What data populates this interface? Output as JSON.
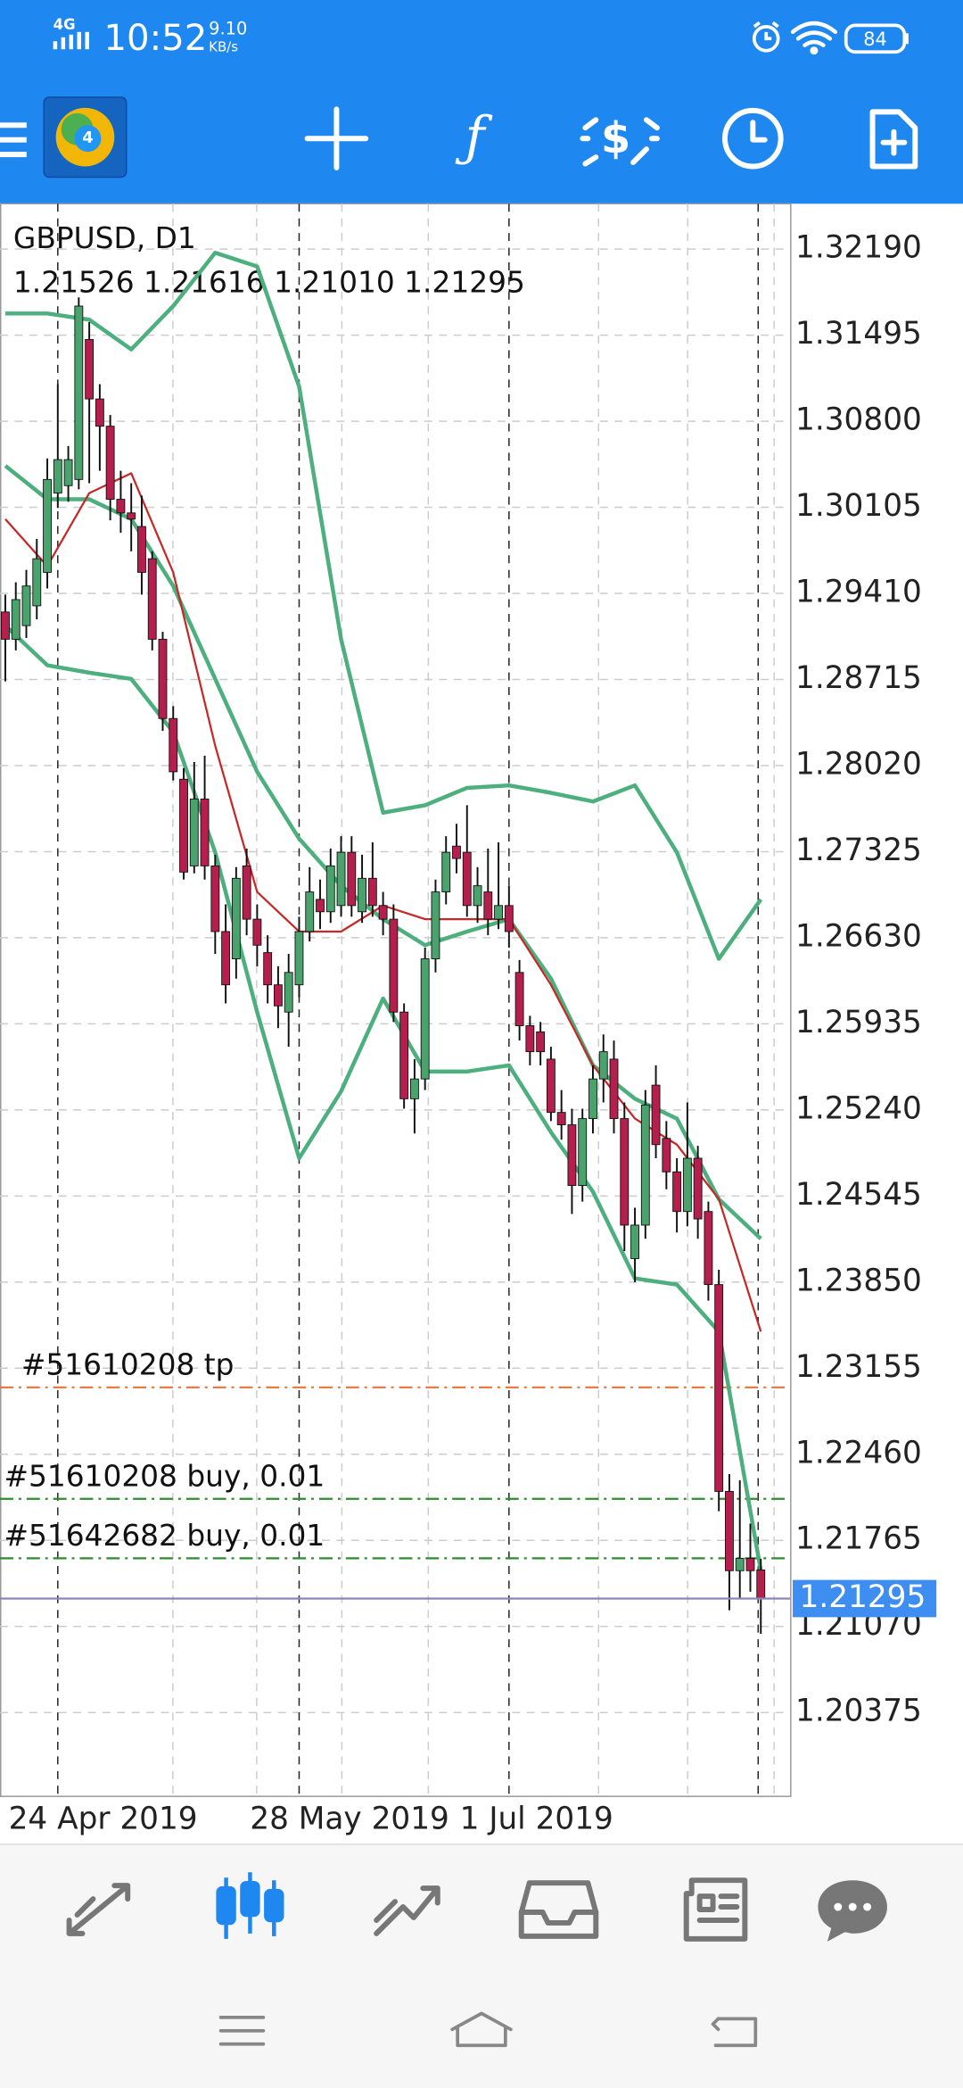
{
  "status_bar": {
    "network": "4G",
    "time": "10:52",
    "speed": "9.10",
    "speed_unit": "KB/s",
    "battery": "84"
  },
  "chart_data": {
    "type": "candlestick",
    "title": "GBPUSD, D1",
    "ohlc_text": "1.21526 1.21616 1.21010 1.21295",
    "up_color": "#4aa36c",
    "down_color": "#b51f4e",
    "grid": true,
    "ylim": [
      1.19698,
      1.32556
    ],
    "yticks": [
      {
        "value": 1.3219,
        "label": "1.32190"
      },
      1.31495,
      {
        "value": 1.308,
        "label": "1.30800"
      },
      1.30105,
      {
        "value": 1.2941,
        "label": "1.29410"
      },
      1.28715,
      {
        "value": 1.2802,
        "label": "1.28020"
      },
      1.27325,
      {
        "value": 1.2663,
        "label": "1.26630"
      },
      1.25935,
      {
        "value": 1.2524,
        "label": "1.25240"
      },
      1.24545,
      {
        "value": 1.2385,
        "label": "1.23850"
      },
      1.23155,
      {
        "value": 1.2246,
        "label": "1.22460"
      },
      1.21765,
      {
        "value": 1.2107,
        "label": "1.21070"
      },
      1.20375
    ],
    "categories": [
      null,
      null,
      null,
      null,
      null,
      "24 Apr 2019",
      null,
      null,
      null,
      null,
      null,
      null,
      null,
      null,
      null,
      null,
      null,
      null,
      null,
      null,
      null,
      null,
      null,
      null,
      null,
      null,
      null,
      null,
      "28 May 2019",
      null,
      null,
      null,
      null,
      null,
      null,
      null,
      null,
      null,
      null,
      null,
      null,
      null,
      null,
      null,
      null,
      null,
      null,
      null,
      "1 Jul 2019",
      null,
      null,
      null,
      null,
      null,
      null,
      null,
      null,
      null,
      null,
      null,
      null,
      null,
      null,
      null,
      null,
      null,
      null,
      null,
      null,
      null,
      null,
      null,
      null
    ],
    "candles": [
      [
        1.2926,
        1.294,
        1.287,
        1.2904
      ],
      [
        1.2904,
        1.295,
        1.2895,
        1.2936
      ],
      [
        1.2915,
        1.296,
        1.2905,
        1.2947
      ],
      [
        1.2931,
        1.2985,
        1.292,
        1.2969
      ],
      [
        1.2958,
        1.305,
        1.2945,
        1.3033
      ],
      [
        1.3022,
        1.311,
        1.301,
        1.3049
      ],
      [
        1.3028,
        1.306,
        1.3015,
        1.3049
      ],
      [
        1.3033,
        1.318,
        1.3025,
        1.3173
      ],
      [
        1.3146,
        1.316,
        1.303,
        1.3098
      ],
      [
        1.3098,
        1.311,
        1.304,
        1.3076
      ],
      [
        1.3076,
        1.3085,
        1.3,
        1.3017
      ],
      [
        1.3017,
        1.304,
        1.299,
        1.3006
      ],
      [
        1.3006,
        1.303,
        1.2975,
        1.3001
      ],
      [
        1.2995,
        1.302,
        1.294,
        1.2958
      ],
      [
        1.2969,
        1.2975,
        1.2895,
        1.2904
      ],
      [
        1.2904,
        1.291,
        1.283,
        1.284
      ],
      [
        1.284,
        1.285,
        1.279,
        1.2797
      ],
      [
        1.2791,
        1.28,
        1.271,
        1.2716
      ],
      [
        1.2721,
        1.2805,
        1.2715,
        1.2775
      ],
      [
        1.2775,
        1.281,
        1.271,
        1.2721
      ],
      [
        1.2721,
        1.273,
        1.265,
        1.2668
      ],
      [
        1.2668,
        1.269,
        1.261,
        1.2625
      ],
      [
        1.2646,
        1.272,
        1.263,
        1.2711
      ],
      [
        1.2721,
        1.2735,
        1.2665,
        1.2678
      ],
      [
        1.2678,
        1.269,
        1.264,
        1.2657
      ],
      [
        1.2651,
        1.2665,
        1.261,
        1.2625
      ],
      [
        1.2625,
        1.264,
        1.259,
        1.2608
      ],
      [
        1.2603,
        1.265,
        1.2575,
        1.2635
      ],
      [
        1.2625,
        1.268,
        1.2615,
        1.2668
      ],
      [
        1.2668,
        1.272,
        1.266,
        1.27
      ],
      [
        1.2694,
        1.271,
        1.267,
        1.2684
      ],
      [
        1.2684,
        1.2735,
        1.2675,
        1.2721
      ],
      [
        1.2689,
        1.2745,
        1.268,
        1.2732
      ],
      [
        1.2732,
        1.2745,
        1.268,
        1.2689
      ],
      [
        1.2684,
        1.273,
        1.2675,
        1.2711
      ],
      [
        1.2711,
        1.274,
        1.268,
        1.2689
      ],
      [
        1.2689,
        1.27,
        1.2665,
        1.2678
      ],
      [
        1.2678,
        1.269,
        1.2595,
        1.2603
      ],
      [
        1.2603,
        1.261,
        1.2525,
        1.2533
      ],
      [
        1.2533,
        1.2565,
        1.2505,
        1.2549
      ],
      [
        1.2549,
        1.2655,
        1.254,
        1.2646
      ],
      [
        1.2646,
        1.271,
        1.2635,
        1.27
      ],
      [
        1.27,
        1.2745,
        1.269,
        1.2732
      ],
      [
        1.2737,
        1.2755,
        1.2715,
        1.2727
      ],
      [
        1.2732,
        1.277,
        1.268,
        1.2689
      ],
      [
        1.2689,
        1.272,
        1.2675,
        1.2705
      ],
      [
        1.27,
        1.2735,
        1.2665,
        1.2678
      ],
      [
        1.2678,
        1.274,
        1.267,
        1.2689
      ],
      [
        1.2689,
        1.2705,
        1.2655,
        1.2668
      ],
      [
        1.2635,
        1.2645,
        1.258,
        1.2592
      ],
      [
        1.2592,
        1.26,
        1.256,
        1.2571
      ],
      [
        1.2587,
        1.2595,
        1.256,
        1.2571
      ],
      [
        1.2565,
        1.2575,
        1.2515,
        1.2522
      ],
      [
        1.2522,
        1.254,
        1.25,
        1.2512
      ],
      [
        1.2512,
        1.2525,
        1.244,
        1.2463
      ],
      [
        1.2463,
        1.2525,
        1.245,
        1.2517
      ],
      [
        1.2517,
        1.256,
        1.2505,
        1.2549
      ],
      [
        1.2549,
        1.2585,
        1.253,
        1.2571
      ],
      [
        1.2565,
        1.258,
        1.2505,
        1.2517
      ],
      [
        1.2517,
        1.253,
        1.241,
        1.2431
      ],
      [
        1.2404,
        1.2445,
        1.2385,
        1.2431
      ],
      [
        1.2431,
        1.254,
        1.242,
        1.2528
      ],
      [
        1.2544,
        1.256,
        1.2485,
        1.2496
      ],
      [
        1.2501,
        1.2515,
        1.246,
        1.2474
      ],
      [
        1.2474,
        1.2485,
        1.2425,
        1.2442
      ],
      [
        1.2442,
        1.253,
        1.243,
        1.2485
      ],
      [
        1.2485,
        1.2495,
        1.242,
        1.2436
      ],
      [
        1.2442,
        1.245,
        1.237,
        1.2383
      ],
      [
        1.2383,
        1.2395,
        1.22,
        1.2216
      ],
      [
        1.2216,
        1.223,
        1.212,
        1.2152
      ],
      [
        1.2152,
        1.2225,
        1.213,
        1.2162
      ],
      [
        1.2162,
        1.219,
        1.2135,
        1.2152
      ],
      [
        1.21526,
        1.21616,
        1.2101,
        1.21295
      ]
    ],
    "series": [
      {
        "color": "#4caf7d",
        "x": [
          0,
          4,
          8,
          12,
          16,
          20,
          24,
          28,
          32,
          36,
          40,
          44,
          48,
          52,
          56,
          60,
          64,
          68,
          72
        ],
        "values": [
          1.3167,
          1.3167,
          1.3162,
          1.3138,
          1.3173,
          1.3216,
          1.3205,
          1.3108,
          1.2904,
          1.2764,
          1.277,
          1.2784,
          1.2786,
          1.278,
          1.2773,
          1.2786,
          1.2732,
          1.2646,
          1.2694
        ]
      },
      {
        "color": "#4caf7d",
        "x": [
          0,
          4,
          8,
          12,
          16,
          20,
          24,
          28,
          32,
          36,
          40,
          44,
          48,
          52,
          56,
          60,
          64,
          68,
          72
        ],
        "values": [
          1.3044,
          1.3017,
          1.3017,
          1.3001,
          1.2947,
          1.2872,
          1.2797,
          1.2743,
          1.2705,
          1.2678,
          1.2657,
          1.2668,
          1.2678,
          1.263,
          1.256,
          1.2533,
          1.2517,
          1.2452,
          1.242
        ]
      },
      {
        "color": "#4caf7d",
        "x": [
          0,
          4,
          8,
          12,
          16,
          20,
          24,
          28,
          32,
          36,
          40,
          44,
          48,
          52,
          56,
          60,
          64,
          68,
          72
        ],
        "values": [
          1.2915,
          1.2883,
          1.2877,
          1.2872,
          1.2829,
          1.2732,
          1.2603,
          1.2485,
          1.2539,
          1.2614,
          1.2555,
          1.2555,
          1.256,
          1.2506,
          1.2458,
          1.2388,
          1.2383,
          1.2345,
          1.2152
        ]
      },
      {
        "color": "#c62828",
        "x": [
          0,
          4,
          8,
          12,
          16,
          20,
          24,
          28,
          32,
          36,
          40,
          44,
          48,
          52,
          56,
          60,
          64,
          68,
          72
        ],
        "values": [
          1.3001,
          1.2963,
          1.3022,
          1.3038,
          1.2958,
          1.2818,
          1.27,
          1.2668,
          1.2668,
          1.2689,
          1.2678,
          1.2678,
          1.2678,
          1.2625,
          1.256,
          1.2517,
          1.2496,
          1.2452,
          1.2345
        ]
      }
    ],
    "levels": [
      {
        "label": "#51610208 tp",
        "value": 1.23,
        "color": "#e8743b"
      },
      {
        "label": "#51610208 buy, 0.01",
        "value": 1.221,
        "color": "#2e8b2e"
      },
      {
        "label": "#51642682 buy, 0.01",
        "value": 1.2162,
        "color": "#2e8b2e"
      }
    ],
    "price_line_color": "#8a84c0"
  }
}
